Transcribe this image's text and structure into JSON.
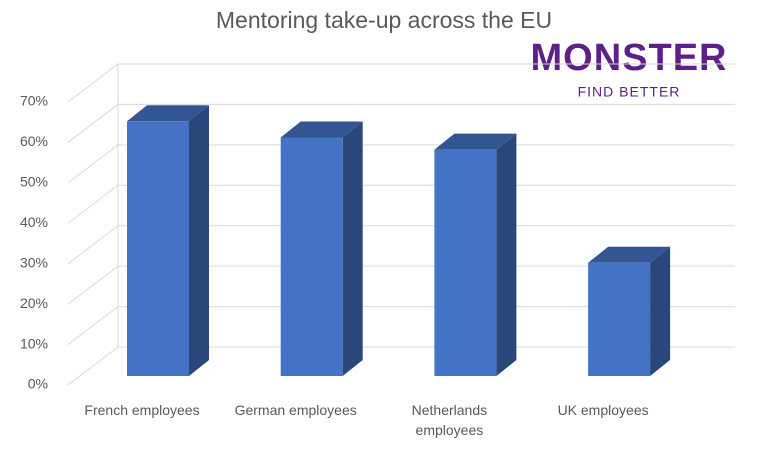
{
  "chart_data": {
    "type": "bar3d",
    "title": "Mentoring take-up across the EU",
    "categories": [
      "French employees",
      "German employees",
      "Netherlands employees",
      "UK employees"
    ],
    "values": [
      63,
      59,
      56,
      28
    ],
    "color": "#4472c4",
    "ylim": [
      0,
      70
    ],
    "yticks": [
      {
        "value": 0,
        "label": "0%"
      },
      {
        "value": 10,
        "label": "10%"
      },
      {
        "value": 20,
        "label": "20%"
      },
      {
        "value": 30,
        "label": "30%"
      },
      {
        "value": 40,
        "label": "40%"
      },
      {
        "value": 50,
        "label": "50%"
      },
      {
        "value": 60,
        "label": "60%"
      },
      {
        "value": 70,
        "label": "70%"
      }
    ],
    "grid": true
  },
  "logo": {
    "name": "MONSTER",
    "tagline": "FIND BETTER"
  }
}
